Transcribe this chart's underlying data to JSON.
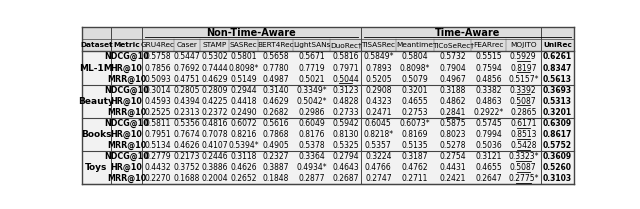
{
  "datasets": [
    "ML-1M",
    "Beauty",
    "Books",
    "Toys"
  ],
  "metrics": [
    "NDCG@10",
    "HR@10",
    "MRR@10"
  ],
  "col_headers": [
    "GRU4Rec",
    "Caser",
    "STAMP",
    "SASRec",
    "BERT4Rec",
    "LightSANs",
    "DuoRec†",
    "TiSASRec",
    "Meantime",
    "TiCoSeRec†",
    "FEARrec",
    "MOJITO",
    "UniRec"
  ],
  "data": {
    "ML-1M": {
      "NDCG@10": [
        "0.5758",
        "0.5447",
        "0.5302",
        "0.5801",
        "0.5658",
        "0.5671",
        "0.5816",
        "0.5849*",
        "0.5804",
        "0.5732",
        "0.5515",
        "0.5929",
        "0.6261"
      ],
      "HR@10": [
        "0.7856",
        "0.7692",
        "0.7444",
        "0.8098*",
        "0.7780",
        "0.7719",
        "0.7971",
        "0.7893",
        "0.8098*",
        "0.7904",
        "0.7594",
        "0.8197",
        "0.8347"
      ],
      "MRR@10": [
        "0.5093",
        "0.4751",
        "0.4629",
        "0.5149",
        "0.4987",
        "0.5021",
        "0.5044",
        "0.5205",
        "0.5079",
        "0.4967",
        "0.4856",
        "0.5157*",
        "0.5613"
      ]
    },
    "Beauty": {
      "NDCG@10": [
        "0.3014",
        "0.2805",
        "0.2809",
        "0.2944",
        "0.3140",
        "0.3349*",
        "0.3123",
        "0.2908",
        "0.3201",
        "0.3188",
        "0.3382",
        "0.3392",
        "0.3693"
      ],
      "HR@10": [
        "0.4593",
        "0.4394",
        "0.4225",
        "0.4418",
        "0.4629",
        "0.5042*",
        "0.4828",
        "0.4323",
        "0.4655",
        "0.4862",
        "0.4863",
        "0.5087",
        "0.5313"
      ],
      "MRR@10": [
        "0.2525",
        "0.2313",
        "0.2372",
        "0.2490",
        "0.2682",
        "0.2986",
        "0.2733",
        "0.2471",
        "0.2753",
        "0.2841",
        "0.2922*",
        "0.2865",
        "0.3201"
      ]
    },
    "Books": {
      "NDCG@10": [
        "0.5811",
        "0.5356",
        "0.4816",
        "0.6072",
        "0.5616",
        "0.6049",
        "0.5942",
        "0.6045",
        "0.6073*",
        "0.5875",
        "0.5745",
        "0.6171",
        "0.6309"
      ],
      "HR@10": [
        "0.7951",
        "0.7674",
        "0.7078",
        "0.8216",
        "0.7868",
        "0.8176",
        "0.8130",
        "0.8218*",
        "0.8169",
        "0.8023",
        "0.7994",
        "0.8513",
        "0.8617"
      ],
      "MRR@10": [
        "0.5134",
        "0.4626",
        "0.4107",
        "0.5394*",
        "0.4905",
        "0.5378",
        "0.5325",
        "0.5357",
        "0.5135",
        "0.5278",
        "0.5036",
        "0.5428",
        "0.5752"
      ]
    },
    "Toys": {
      "NDCG@10": [
        "0.2779",
        "0.2173",
        "0.2446",
        "0.3118",
        "0.2327",
        "0.3364",
        "0.2794",
        "0.3224",
        "0.3187",
        "0.2754",
        "0.3121",
        "0.3323*",
        "0.3609"
      ],
      "HR@10": [
        "0.4432",
        "0.3752",
        "0.3886",
        "0.4626",
        "0.3887",
        "0.4934*",
        "0.4643",
        "0.4766",
        "0.4762",
        "0.4431",
        "0.4655",
        "0.5087",
        "0.5260"
      ],
      "MRR@10": [
        "0.2270",
        "0.1688",
        "0.2004",
        "0.2652",
        "0.1848",
        "0.2877",
        "0.2687",
        "0.2747",
        "0.2711",
        "0.2421",
        "0.2647",
        "0.2775*",
        "0.3103"
      ]
    }
  },
  "underline": {
    "ML-1M": {
      "NDCG@10": 11,
      "HR@10": 11,
      "MRR@10": 6
    },
    "Beauty": {
      "NDCG@10": 11,
      "HR@10": 11,
      "MRR@10": 9
    },
    "Books": {
      "NDCG@10": 11,
      "HR@10": 11,
      "MRR@10": 11
    },
    "Toys": {
      "NDCG@10": 11,
      "HR@10": 11,
      "MRR@10": 11
    }
  },
  "bg_header": "#e0e0e0",
  "bg_table": "#f5f5f5",
  "line_color": "#555555"
}
